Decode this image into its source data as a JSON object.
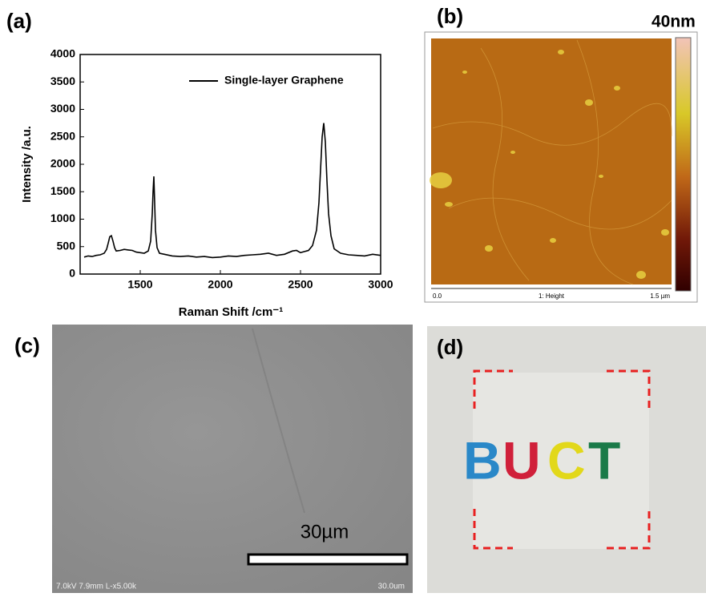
{
  "chart_data": {
    "type": "line",
    "panel_label": "(a)",
    "x_label": "Raman Shift /cm⁻¹",
    "y_label": "Intensity /a.u.",
    "x": [
      1150,
      1175,
      1200,
      1225,
      1250,
      1275,
      1290,
      1300,
      1310,
      1320,
      1330,
      1340,
      1350,
      1375,
      1400,
      1425,
      1450,
      1475,
      1500,
      1525,
      1550,
      1565,
      1575,
      1580,
      1585,
      1590,
      1595,
      1605,
      1620,
      1650,
      1700,
      1750,
      1800,
      1850,
      1900,
      1950,
      2000,
      2050,
      2100,
      2150,
      2200,
      2250,
      2300,
      2350,
      2400,
      2450,
      2475,
      2500,
      2550,
      2575,
      2600,
      2615,
      2625,
      2635,
      2645,
      2655,
      2665,
      2675,
      2690,
      2710,
      2750,
      2800,
      2850,
      2900,
      2950,
      3000
    ],
    "series": [
      {
        "name": "Single-layer Graphene",
        "color": "#000000",
        "values": [
          310,
          330,
          320,
          340,
          350,
          380,
          450,
          560,
          680,
          700,
          600,
          480,
          420,
          430,
          450,
          440,
          430,
          400,
          390,
          380,
          420,
          600,
          1100,
          1500,
          1780,
          1300,
          800,
          480,
          380,
          360,
          330,
          320,
          330,
          310,
          320,
          300,
          310,
          330,
          320,
          340,
          350,
          360,
          380,
          340,
          360,
          420,
          430,
          390,
          430,
          520,
          800,
          1300,
          1900,
          2500,
          2750,
          2400,
          1700,
          1100,
          700,
          460,
          380,
          350,
          340,
          330,
          360,
          340
        ]
      }
    ],
    "xlim": [
      1125,
      3000
    ],
    "xticks": [
      1500,
      2000,
      2500,
      3000
    ],
    "ylim": [
      0,
      4000
    ],
    "yticks": [
      0,
      500,
      1000,
      1500,
      2000,
      2500,
      3000,
      3500,
      4000
    ],
    "legend": "upper right"
  },
  "panels": {
    "b": {
      "label": "(b)",
      "colorbar_max": "40nm",
      "scale_start": "0.0",
      "channel": "1: Height",
      "scale_end": "1.5 µm"
    },
    "c": {
      "label": "(c)",
      "scale_bar": "30µm",
      "info": "7.0kV 7.9mm L-x5.00k",
      "scale_small": "30.0um"
    },
    "d": {
      "label": "(d)",
      "letters": [
        "B",
        "U",
        "C",
        "T"
      ]
    }
  }
}
